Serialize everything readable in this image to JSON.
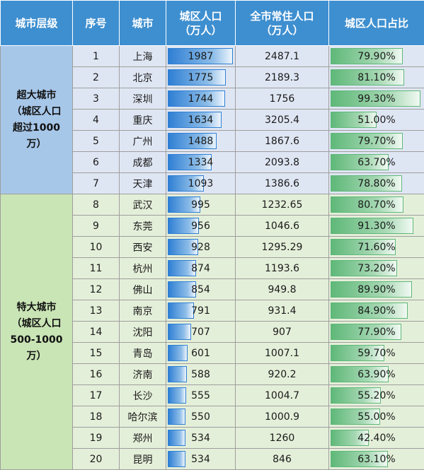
{
  "headers": {
    "tier": "城市层级",
    "index": "序号",
    "city": "城市",
    "urban_line1": "城区人口",
    "urban_line2": "（万人）",
    "total_line1": "全市常住人口",
    "total_line2": "（万人）",
    "ratio": "城区人口占比"
  },
  "tiers": [
    {
      "lines": [
        "超大城市",
        "（城区人口",
        "超过1000",
        "万）"
      ]
    },
    {
      "lines": [
        "特大城市",
        "（城区人口",
        "500-1000",
        "万）"
      ]
    }
  ],
  "rows": [
    {
      "index": "1",
      "city": "上海",
      "urban": "1987",
      "total": "2487.1",
      "ratio": "79.90%"
    },
    {
      "index": "2",
      "city": "北京",
      "urban": "1775",
      "total": "2189.3",
      "ratio": "81.10%"
    },
    {
      "index": "3",
      "city": "深圳",
      "urban": "1744",
      "total": "1756",
      "ratio": "99.30%"
    },
    {
      "index": "4",
      "city": "重庆",
      "urban": "1634",
      "total": "3205.4",
      "ratio": "51.00%"
    },
    {
      "index": "5",
      "city": "广州",
      "urban": "1488",
      "total": "1867.6",
      "ratio": "79.70%"
    },
    {
      "index": "6",
      "city": "成都",
      "urban": "1334",
      "total": "2093.8",
      "ratio": "63.70%"
    },
    {
      "index": "7",
      "city": "天津",
      "urban": "1093",
      "total": "1386.6",
      "ratio": "78.80%"
    },
    {
      "index": "8",
      "city": "武汉",
      "urban": "995",
      "total": "1232.65",
      "ratio": "80.70%"
    },
    {
      "index": "9",
      "city": "东莞",
      "urban": "956",
      "total": "1046.6",
      "ratio": "91.30%"
    },
    {
      "index": "10",
      "city": "西安",
      "urban": "928",
      "total": "1295.29",
      "ratio": "71.60%"
    },
    {
      "index": "11",
      "city": "杭州",
      "urban": "874",
      "total": "1193.6",
      "ratio": "73.20%"
    },
    {
      "index": "12",
      "city": "佛山",
      "urban": "854",
      "total": "949.8",
      "ratio": "89.90%"
    },
    {
      "index": "13",
      "city": "南京",
      "urban": "791",
      "total": "931.4",
      "ratio": "84.90%"
    },
    {
      "index": "14",
      "city": "沈阳",
      "urban": "707",
      "total": "907",
      "ratio": "77.90%"
    },
    {
      "index": "15",
      "city": "青岛",
      "urban": "601",
      "total": "1007.1",
      "ratio": "59.70%"
    },
    {
      "index": "16",
      "city": "济南",
      "urban": "588",
      "total": "920.2",
      "ratio": "63.90%"
    },
    {
      "index": "17",
      "city": "长沙",
      "urban": "555",
      "total": "1004.7",
      "ratio": "55.20%"
    },
    {
      "index": "18",
      "city": "哈尔滨",
      "urban": "550",
      "total": "1000.9",
      "ratio": "55.00%"
    },
    {
      "index": "19",
      "city": "郑州",
      "urban": "534",
      "total": "1260",
      "ratio": "42.40%"
    },
    {
      "index": "20",
      "city": "昆明",
      "urban": "534",
      "total": "846",
      "ratio": "63.10%"
    }
  ],
  "colors": {
    "header": "#3e8fd0",
    "tier_a": "#a7c7e9",
    "tier_b": "#c9e4b5",
    "row_a": "#dfe6f3",
    "row_b": "#e4efd9",
    "urban_bar": "#2f7fd4",
    "ratio_bar": "#5fb879"
  }
}
